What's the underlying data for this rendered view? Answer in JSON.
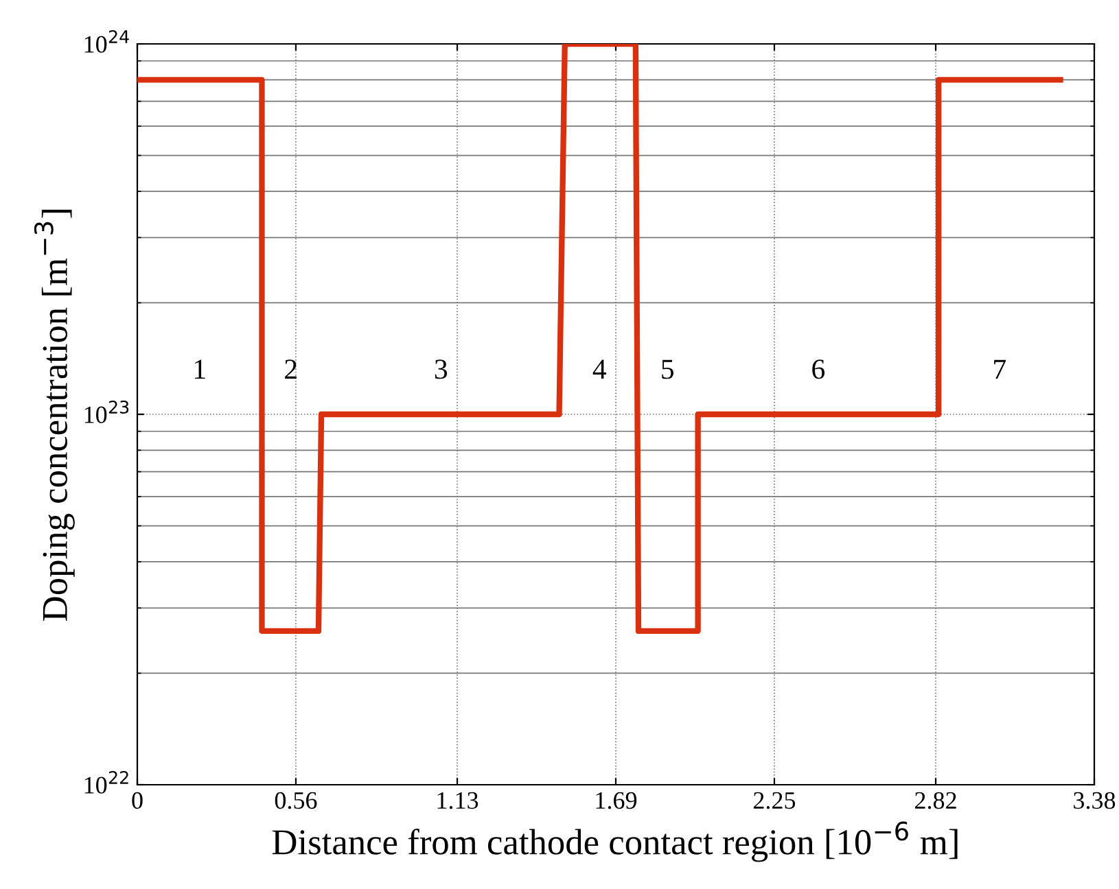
{
  "chart_data": {
    "type": "line",
    "xlabel": "Distance from cathode contact region [10$^{−6}$ m]",
    "ylabel": "Doping concentration [m$^{−3}$]",
    "log": "y",
    "grid": true,
    "marker": "none",
    "line_style": "solid",
    "xlim": [
      0,
      3.38
    ],
    "xticks": [
      0,
      0.56,
      1.13,
      1.69,
      2.25,
      2.82,
      3.38
    ],
    "ylim": [
      1e+22,
      1e+24
    ],
    "yticks": [
      {
        "value": 1e+22,
        "label": "10$^{22}$"
      },
      {
        "value": 1e+23,
        "label": "10$^{23}$"
      },
      {
        "value": 1e+24,
        "label": "10$^{24}$"
      }
    ],
    "series": [
      {
        "color": "#d9300f",
        "x": [
          0,
          0.44,
          0.44,
          0.64,
          0.65,
          1.49,
          1.51,
          1.76,
          1.77,
          1.98,
          1.98,
          2.83,
          2.83,
          3.26
        ],
        "values": [
          8e+23,
          8e+23,
          2.6e+22,
          2.6e+22,
          1e+23,
          1e+23,
          1e+24,
          1e+24,
          2.6e+22,
          2.6e+22,
          1e+23,
          1e+23,
          8e+23,
          8e+23
        ]
      }
    ],
    "annotations": [
      "1",
      "2",
      "3",
      "4",
      "5",
      "6",
      "7"
    ]
  }
}
